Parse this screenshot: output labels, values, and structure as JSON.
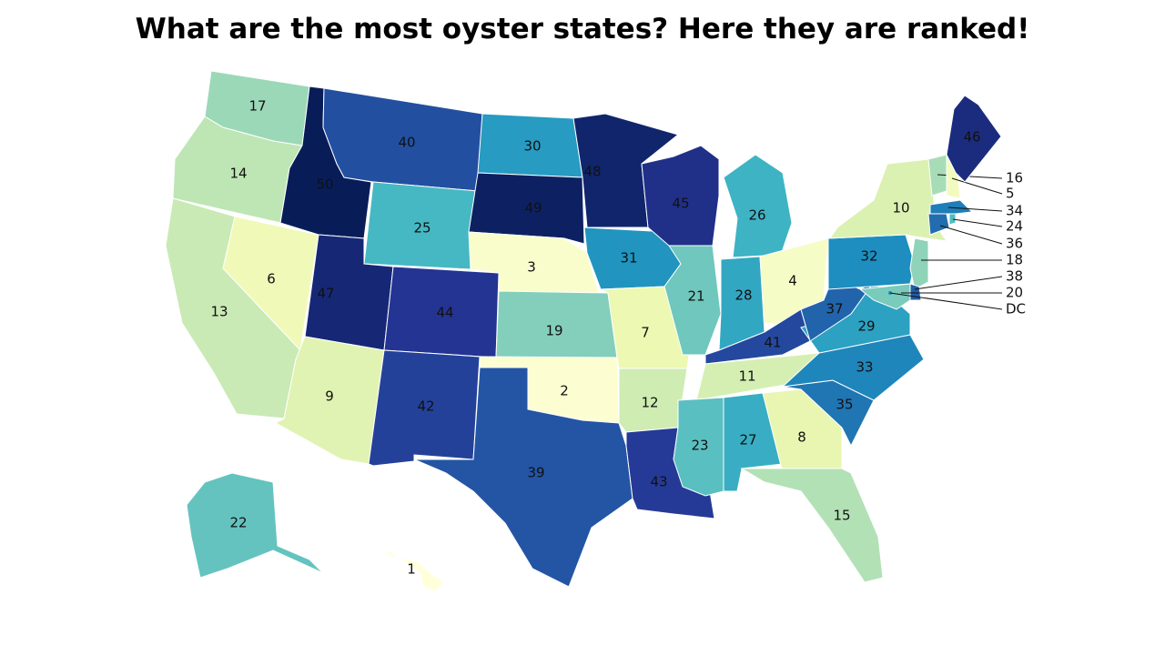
{
  "title": "What are the most oyster states? Here they are ranked!",
  "map": {
    "colorscale": [
      "#ffffd9",
      "#edf8b1",
      "#c7e9b4",
      "#7fcdbb",
      "#41b6c4",
      "#1d91c0",
      "#225ea8",
      "#253494",
      "#081d58"
    ],
    "regions": [
      {
        "value": 17
      },
      {
        "value": 14
      },
      {
        "value": 13
      },
      {
        "value": 6
      },
      {
        "value": 50
      },
      {
        "value": 40
      },
      {
        "value": 25
      },
      {
        "value": 47
      },
      {
        "value": 9
      },
      {
        "value": 44
      },
      {
        "value": 42
      },
      {
        "value": 30
      },
      {
        "value": 49
      },
      {
        "value": 3
      },
      {
        "value": 19
      },
      {
        "value": 2
      },
      {
        "value": 39
      },
      {
        "value": 48
      },
      {
        "value": 31
      },
      {
        "value": 7
      },
      {
        "value": 12
      },
      {
        "value": 43
      },
      {
        "value": 45
      },
      {
        "value": 21
      },
      {
        "value": 28
      },
      {
        "value": 26
      },
      {
        "value": 4
      },
      {
        "value": 41
      },
      {
        "value": 11
      },
      {
        "value": 23
      },
      {
        "value": 27
      },
      {
        "value": 8
      },
      {
        "value": 15
      },
      {
        "value": 35
      },
      {
        "value": 33
      },
      {
        "value": 29
      },
      {
        "value": 37
      },
      {
        "value": 32
      },
      {
        "value": 10
      },
      {
        "value": 18
      },
      {
        "value": 38
      },
      {
        "value": 20
      },
      {
        "value": 36
      },
      {
        "value": 24
      },
      {
        "value": 34
      },
      {
        "value": 16
      },
      {
        "value": 5
      },
      {
        "value": 46
      },
      {
        "value": 22
      },
      {
        "value": 1
      },
      {
        "label": "DC"
      }
    ]
  }
}
